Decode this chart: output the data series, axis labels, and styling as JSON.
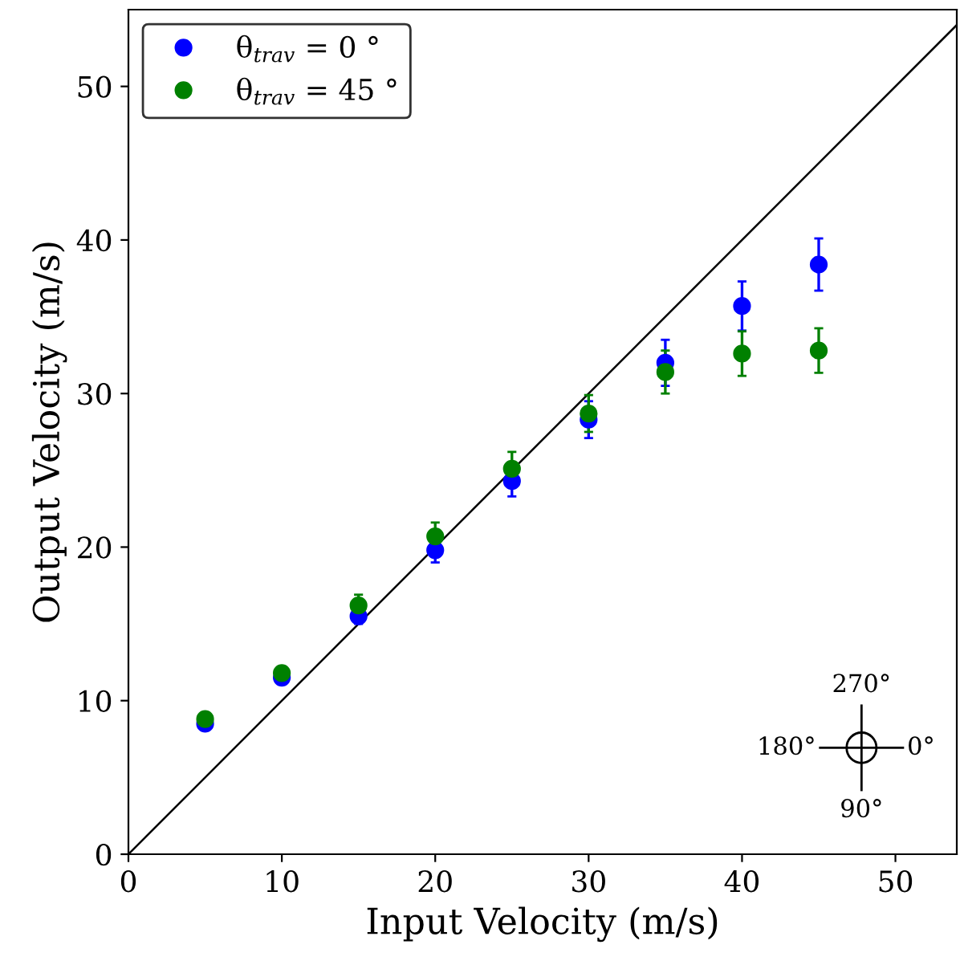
{
  "chart_data": {
    "type": "scatter",
    "xlabel": "Input Velocity (m/s)",
    "ylabel": "Output Velocity (m/s)",
    "x": [
      5,
      10,
      15,
      20,
      25,
      30,
      35,
      40,
      45
    ],
    "series": [
      {
        "name": "θ$_{trav}$ = 0 °",
        "color": "#0000ff",
        "values": [
          8.5,
          11.5,
          15.5,
          19.8,
          24.3,
          28.3,
          32.0,
          35.7,
          38.4
        ],
        "errors": [
          0.2,
          0.3,
          0.5,
          0.8,
          1.0,
          1.2,
          1.5,
          1.6,
          1.7
        ]
      },
      {
        "name": "θ$_{trav}$ = 45 °",
        "color": "#008000",
        "values": [
          8.8,
          11.8,
          16.2,
          20.7,
          25.1,
          28.7,
          31.4,
          32.6,
          32.8
        ],
        "errors": [
          0.2,
          0.4,
          0.7,
          0.9,
          1.1,
          1.2,
          1.4,
          1.45,
          1.45
        ]
      },
      {
        "type": "line",
        "color": "#000000",
        "x": [
          0,
          54
        ],
        "values": [
          0,
          54
        ],
        "marker": "none"
      }
    ],
    "annotations": [
      "270°",
      "180°",
      "0°",
      "90°"
    ],
    "xlim": [
      0,
      54
    ],
    "ylim": [
      0,
      55
    ],
    "xticks": [
      0,
      10,
      20,
      30,
      40,
      50
    ],
    "yticks": [
      0,
      10,
      20,
      30,
      40,
      50
    ],
    "grid": false,
    "legend": "top left",
    "marker": "circle"
  }
}
